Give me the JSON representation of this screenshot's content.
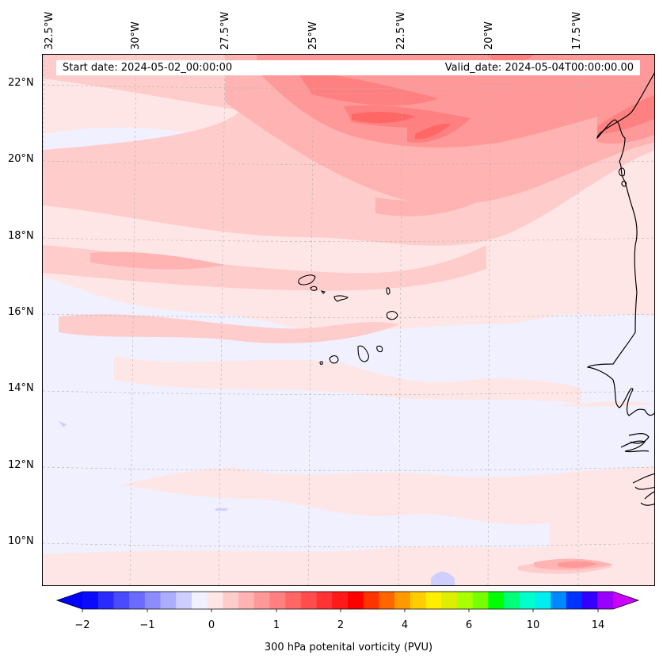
{
  "map": {
    "start_date_text": "Start date: 2024-05-02_00:00:00",
    "valid_date_text": "Valid_date: 2024-05-04T00:00:00.00",
    "longitude_labels": [
      "32.5°W",
      "30°W",
      "27.5°W",
      "25°W",
      "22.5°W",
      "20°W",
      "17.5°W"
    ],
    "latitude_labels": [
      "22°N",
      "20°N",
      "18°N",
      "16°N",
      "14°N",
      "12°N",
      "10°N"
    ],
    "field": "300 hPa potential vorticity",
    "regions": [
      "Cape Verde Islands",
      "West African coast"
    ]
  },
  "colorbar": {
    "label": "300 hPa potenital vorticity (PVU)",
    "tick_labels": [
      "−2",
      "−1",
      "0",
      "1",
      "2",
      "4",
      "6",
      "10",
      "14"
    ],
    "colors": [
      "#0a0aff",
      "#2a2aff",
      "#4a4aff",
      "#6b6bff",
      "#8c8cff",
      "#adadff",
      "#cfcfff",
      "#f0f0ff",
      "#ffe6e6",
      "#ffcccc",
      "#ffb3b3",
      "#ff9999",
      "#ff8080",
      "#ff6666",
      "#ff4d4d",
      "#ff3333",
      "#ff1a1a",
      "#ff0000",
      "#ff3300",
      "#ff6600",
      "#ff9900",
      "#ffcc00",
      "#ffee00",
      "#ddee00",
      "#aaff00",
      "#77ff00",
      "#00ff00",
      "#00ff77",
      "#00ffcc",
      "#00eeee",
      "#0088ff",
      "#0033ff",
      "#3300ff",
      "#9900ff"
    ],
    "extend_low_color": "#0000ff",
    "extend_high_color": "#cc00ff"
  }
}
